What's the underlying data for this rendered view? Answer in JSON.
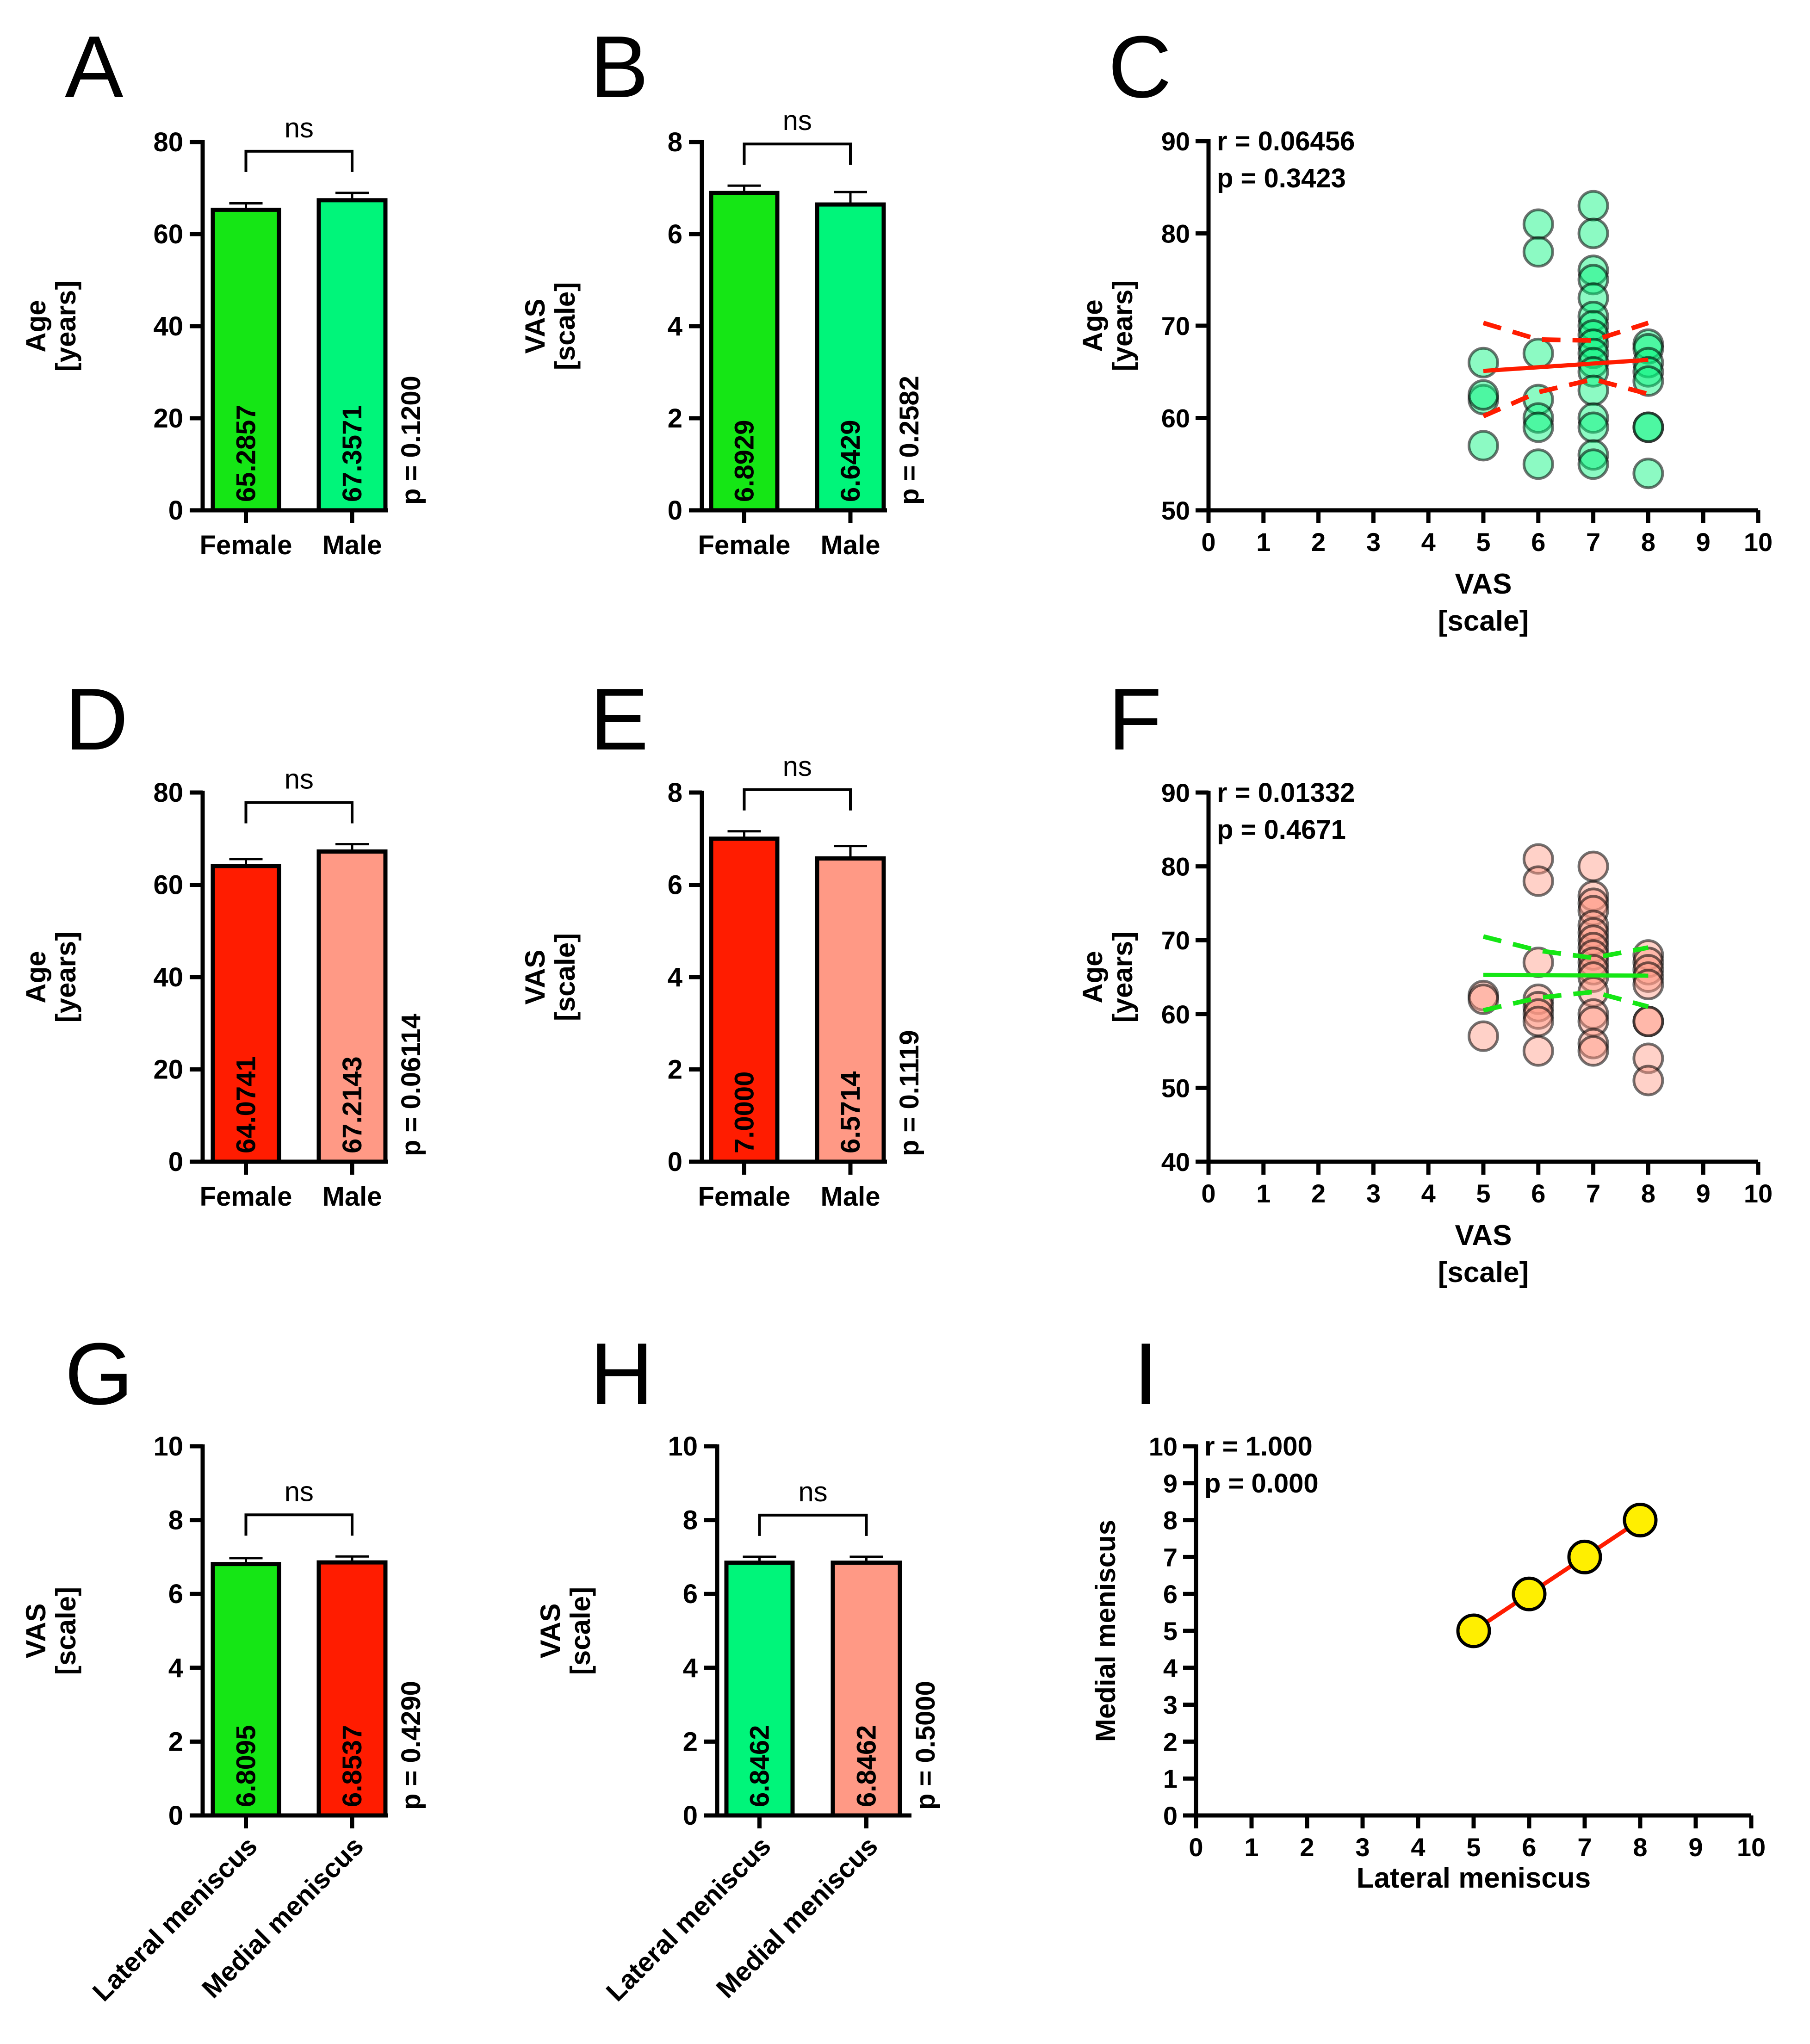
{
  "colors": {
    "green": "#15e615",
    "spring_green": "#00f57a",
    "red": "#ff1c00",
    "salmon": "#ff9985",
    "yellow": "#ffef00",
    "axis": "#000000"
  },
  "chart_data": [
    {
      "type": "bar",
      "panel": "A",
      "title": "",
      "ylabel_line1": "Age",
      "ylabel_line2": "[years]",
      "categories": [
        "Female",
        "Male"
      ],
      "values": [
        65.2857,
        67.3571
      ],
      "value_labels": [
        "65.2857",
        "67.3571"
      ],
      "errors": [
        1.4,
        1.6
      ],
      "bar_colors": [
        "#15e615",
        "#00f57a"
      ],
      "ylim": [
        0,
        80
      ],
      "yticks": [
        0,
        20,
        40,
        60,
        80
      ],
      "ytick_labels": [
        "0",
        "20",
        "40",
        "60",
        "80"
      ],
      "significance": "ns",
      "p_text": "p = 0.1200"
    },
    {
      "type": "bar",
      "panel": "B",
      "title": "",
      "ylabel_line1": "VAS",
      "ylabel_line2": "[scale]",
      "categories": [
        "Female",
        "Male"
      ],
      "values": [
        6.8929,
        6.6429
      ],
      "value_labels": [
        "6.8929",
        "6.6429"
      ],
      "errors": [
        0.16,
        0.27
      ],
      "bar_colors": [
        "#15e615",
        "#00f57a"
      ],
      "ylim": [
        0,
        8
      ],
      "yticks": [
        0,
        2,
        4,
        6,
        8
      ],
      "ytick_labels": [
        "0",
        "2",
        "4",
        "6",
        "8"
      ],
      "significance": "ns",
      "p_text": "p = 0.2582"
    },
    {
      "type": "scatter",
      "panel": "C",
      "xlabel_line1": "VAS",
      "xlabel_line2": "[scale]",
      "ylabel_line1": "Age",
      "ylabel_line2": "[years]",
      "xlim": [
        0,
        10
      ],
      "ylim": [
        50,
        90
      ],
      "xticks": [
        0,
        1,
        2,
        3,
        4,
        5,
        6,
        7,
        8,
        9,
        10
      ],
      "xtick_labels": [
        "0",
        "1",
        "2",
        "3",
        "4",
        "5",
        "6",
        "7",
        "8",
        "9",
        "10"
      ],
      "yticks": [
        50,
        60,
        70,
        80,
        90
      ],
      "ytick_labels": [
        "50",
        "60",
        "70",
        "80",
        "90"
      ],
      "stat_r": "r = 0.06456",
      "stat_p": "p = 0.3423",
      "point_color": "#00f57a",
      "line_color": "#ff1c00",
      "points": [
        [
          5,
          66
        ],
        [
          5,
          62
        ],
        [
          5,
          62.5
        ],
        [
          5,
          57
        ],
        [
          6,
          81
        ],
        [
          6,
          78
        ],
        [
          6,
          67
        ],
        [
          6,
          62
        ],
        [
          6,
          60
        ],
        [
          6,
          59
        ],
        [
          6,
          55
        ],
        [
          7,
          83
        ],
        [
          7,
          80
        ],
        [
          7,
          76
        ],
        [
          7,
          75
        ],
        [
          7,
          73
        ],
        [
          7,
          71
        ],
        [
          7,
          70
        ],
        [
          7,
          69
        ],
        [
          7,
          68
        ],
        [
          7,
          67
        ],
        [
          7,
          66
        ],
        [
          7,
          65
        ],
        [
          7,
          63
        ],
        [
          7,
          60
        ],
        [
          7,
          59
        ],
        [
          7,
          56
        ],
        [
          7,
          55
        ],
        [
          8,
          68
        ],
        [
          8,
          67.5
        ],
        [
          8,
          66
        ],
        [
          8,
          65
        ],
        [
          8,
          64
        ],
        [
          8,
          59
        ],
        [
          8,
          59
        ],
        [
          8,
          54
        ]
      ],
      "fit_x": [
        5,
        8
      ],
      "fit_y": [
        65.1,
        66.3
      ],
      "ci_upper": [
        [
          5,
          70.3
        ],
        [
          6,
          68.5
        ],
        [
          7,
          68.4
        ],
        [
          8,
          70.3
        ]
      ],
      "ci_lower": [
        [
          5,
          60.2
        ],
        [
          6,
          62.8
        ],
        [
          7,
          64.2
        ],
        [
          8,
          62.6
        ]
      ]
    },
    {
      "type": "bar",
      "panel": "D",
      "title": "",
      "ylabel_line1": "Age",
      "ylabel_line2": "[years]",
      "categories": [
        "Female",
        "Male"
      ],
      "values": [
        64.0741,
        67.2143
      ],
      "value_labels": [
        "64.0741",
        "67.2143"
      ],
      "errors": [
        1.5,
        1.6
      ],
      "bar_colors": [
        "#ff1c00",
        "#ff9985"
      ],
      "ylim": [
        0,
        80
      ],
      "yticks": [
        0,
        20,
        40,
        60,
        80
      ],
      "ytick_labels": [
        "0",
        "20",
        "40",
        "60",
        "80"
      ],
      "significance": "ns",
      "p_text": "p = 0.06114"
    },
    {
      "type": "bar",
      "panel": "E",
      "title": "",
      "ylabel_line1": "VAS",
      "ylabel_line2": "[scale]",
      "categories": [
        "Female",
        "Male"
      ],
      "values": [
        7.0,
        6.5714
      ],
      "value_labels": [
        "7.0000",
        "6.5714"
      ],
      "errors": [
        0.16,
        0.27
      ],
      "bar_colors": [
        "#ff1c00",
        "#ff9985"
      ],
      "ylim": [
        0,
        8
      ],
      "yticks": [
        0,
        2,
        4,
        6,
        8
      ],
      "ytick_labels": [
        "0",
        "2",
        "4",
        "6",
        "8"
      ],
      "significance": "ns",
      "p_text": "p = 0.1119"
    },
    {
      "type": "scatter",
      "panel": "F",
      "xlabel_line1": "VAS",
      "xlabel_line2": "[scale]",
      "ylabel_line1": "Age",
      "ylabel_line2": "[years]",
      "xlim": [
        0,
        10
      ],
      "ylim": [
        40,
        90
      ],
      "xticks": [
        0,
        1,
        2,
        3,
        4,
        5,
        6,
        7,
        8,
        9,
        10
      ],
      "xtick_labels": [
        "0",
        "1",
        "2",
        "3",
        "4",
        "5",
        "6",
        "7",
        "8",
        "9",
        "10"
      ],
      "yticks": [
        40,
        50,
        60,
        70,
        80,
        90
      ],
      "ytick_labels": [
        "40",
        "50",
        "60",
        "70",
        "80",
        "90"
      ],
      "stat_r": "r = 0.01332",
      "stat_p": "p = 0.4671",
      "point_color": "#ff9985",
      "line_color": "#15e615",
      "points": [
        [
          5,
          62.5
        ],
        [
          5,
          62
        ],
        [
          5,
          57
        ],
        [
          6,
          81
        ],
        [
          6,
          78
        ],
        [
          6,
          67
        ],
        [
          6,
          62
        ],
        [
          6,
          61
        ],
        [
          6,
          60
        ],
        [
          6,
          59
        ],
        [
          6,
          55
        ],
        [
          7,
          80
        ],
        [
          7,
          76
        ],
        [
          7,
          75
        ],
        [
          7,
          74
        ],
        [
          7,
          72
        ],
        [
          7,
          71
        ],
        [
          7,
          70
        ],
        [
          7,
          69
        ],
        [
          7,
          68
        ],
        [
          7,
          67
        ],
        [
          7,
          66
        ],
        [
          7,
          65
        ],
        [
          7,
          63
        ],
        [
          7,
          60
        ],
        [
          7,
          59
        ],
        [
          7,
          56
        ],
        [
          7,
          55
        ],
        [
          8,
          68
        ],
        [
          8,
          67
        ],
        [
          8,
          66
        ],
        [
          8,
          65
        ],
        [
          8,
          64
        ],
        [
          8,
          59
        ],
        [
          8,
          59
        ],
        [
          8,
          54
        ],
        [
          8,
          51
        ]
      ],
      "fit_x": [
        5,
        8
      ],
      "fit_y": [
        65.3,
        65.2
      ],
      "ci_upper": [
        [
          5,
          70.5
        ],
        [
          6,
          68.6
        ],
        [
          7,
          67.6
        ],
        [
          8,
          69.0
        ]
      ],
      "ci_lower": [
        [
          5,
          60.5
        ],
        [
          6,
          62.2
        ],
        [
          7,
          63.0
        ],
        [
          8,
          61.0
        ]
      ]
    },
    {
      "type": "bar",
      "panel": "G",
      "title": "",
      "ylabel_line1": "VAS",
      "ylabel_line2": "[scale]",
      "categories": [
        "Lateral meniscus",
        "Medial meniscus"
      ],
      "values": [
        6.8095,
        6.8537
      ],
      "value_labels": [
        "6.8095",
        "6.8537"
      ],
      "errors": [
        0.16,
        0.16
      ],
      "bar_colors": [
        "#15e615",
        "#ff1c00"
      ],
      "ylim": [
        0,
        10
      ],
      "yticks": [
        0,
        2,
        4,
        6,
        8,
        10
      ],
      "ytick_labels": [
        "0",
        "2",
        "4",
        "6",
        "8",
        "10"
      ],
      "significance": "ns",
      "p_text": "p = 0.4290"
    },
    {
      "type": "bar",
      "panel": "H",
      "title": "",
      "ylabel_line1": "VAS",
      "ylabel_line2": "[scale]",
      "categories": [
        "Lateral meniscus",
        "Medial meniscus"
      ],
      "values": [
        6.8462,
        6.8462
      ],
      "value_labels": [
        "6.8462",
        "6.8462"
      ],
      "errors": [
        0.16,
        0.16
      ],
      "bar_colors": [
        "#00f57a",
        "#ff9985"
      ],
      "ylim": [
        0,
        10
      ],
      "yticks": [
        0,
        2,
        4,
        6,
        8,
        10
      ],
      "ytick_labels": [
        "0",
        "2",
        "4",
        "6",
        "8",
        "10"
      ],
      "significance": "ns",
      "p_text": "p = 0.5000"
    },
    {
      "type": "scatter",
      "panel": "I",
      "xlabel_line1": "Lateral meniscus",
      "xlabel_line2": "",
      "ylabel_line1": "Medial meniscus",
      "ylabel_line2": "",
      "xlim": [
        0,
        10
      ],
      "ylim": [
        0,
        10
      ],
      "xticks": [
        0,
        1,
        2,
        3,
        4,
        5,
        6,
        7,
        8,
        9,
        10
      ],
      "xtick_labels": [
        "0",
        "1",
        "2",
        "3",
        "4",
        "5",
        "6",
        "7",
        "8",
        "9",
        "10"
      ],
      "yticks": [
        0,
        1,
        2,
        3,
        4,
        5,
        6,
        7,
        8,
        9,
        10
      ],
      "ytick_labels": [
        "0",
        "1",
        "2",
        "3",
        "4",
        "5",
        "6",
        "7",
        "8",
        "9",
        "10"
      ],
      "stat_r": "r = 1.000",
      "stat_p": "p = 0.000",
      "point_color": "#ffef00",
      "line_color": "#ff1c00",
      "points": [
        [
          5,
          5
        ],
        [
          6,
          6
        ],
        [
          7,
          7
        ],
        [
          8,
          8
        ]
      ],
      "fit_x": [
        5,
        8
      ],
      "fit_y": [
        5,
        8
      ],
      "ci_upper": [],
      "ci_lower": []
    }
  ]
}
